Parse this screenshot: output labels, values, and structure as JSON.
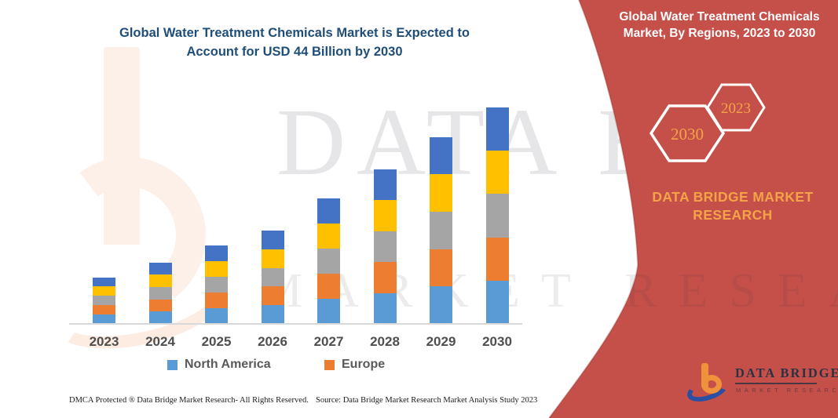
{
  "chart_title": {
    "line1": "Global Water Treatment Chemicals Market is Expected to",
    "line2": "Account for USD 44 Billion by 2030"
  },
  "banner": {
    "background_color": "#C5504A",
    "accent_text_color": "#F5A347",
    "title_line1": "Global Water Treatment Chemicals",
    "title_line2": "Market, By Regions, 2023 to 2030",
    "hex_badges": [
      {
        "label": "2030"
      },
      {
        "label": "2023"
      }
    ],
    "brand_line1": "DATA BRIDGE MARKET",
    "brand_line2": "RESEARCH"
  },
  "watermark": {
    "line1": "DATA BRIDGE",
    "line2": "MARKET RESEARCH"
  },
  "chart_data": {
    "type": "bar",
    "stacked": true,
    "title": "Global Water Treatment Chemicals Market is Expected to Account for USD 44 Billion by 2030",
    "unit": "USD Billion",
    "categories": [
      "2023",
      "2024",
      "2025",
      "2026",
      "2027",
      "2028",
      "2029",
      "2030"
    ],
    "series": [
      {
        "name": "North America",
        "color": "#5B9BD5",
        "values": [
          1.9,
          2.5,
          3.2,
          3.8,
          5.1,
          6.3,
          7.6,
          8.8
        ]
      },
      {
        "name": "Europe",
        "color": "#ED7D31",
        "values": [
          1.9,
          2.5,
          3.2,
          3.8,
          5.1,
          6.3,
          7.6,
          8.8
        ]
      },
      {
        "name": "",
        "color": "#A5A5A5",
        "values": [
          1.9,
          2.5,
          3.2,
          3.8,
          5.1,
          6.3,
          7.6,
          8.8
        ]
      },
      {
        "name": "",
        "color": "#FFC000",
        "values": [
          1.9,
          2.5,
          3.2,
          3.8,
          5.1,
          6.3,
          7.6,
          8.8
        ]
      },
      {
        "name": "",
        "color": "#4472C4",
        "values": [
          1.9,
          2.5,
          3.2,
          3.8,
          5.1,
          6.3,
          7.6,
          8.8
        ]
      }
    ],
    "totals": [
      9.5,
      12.5,
      16.0,
      19.0,
      25.5,
      31.5,
      38.0,
      44.0
    ],
    "legend": [
      "North America",
      "Europe"
    ],
    "legend_position": "bottom",
    "grid": false,
    "axes": {
      "x_ticks_shown": true,
      "y_axis_shown": false,
      "baseline_color": "#d8d8d8"
    }
  },
  "logo": {
    "name": "DATA BRIDGE",
    "subtext": "MARKET RESEARCH"
  },
  "footer": {
    "left": "DMCA Protected ® Data Bridge Market Research-  All Rights Reserved.",
    "right": "Source: Data Bridge Market Research  Market Analysis Study 2023"
  }
}
